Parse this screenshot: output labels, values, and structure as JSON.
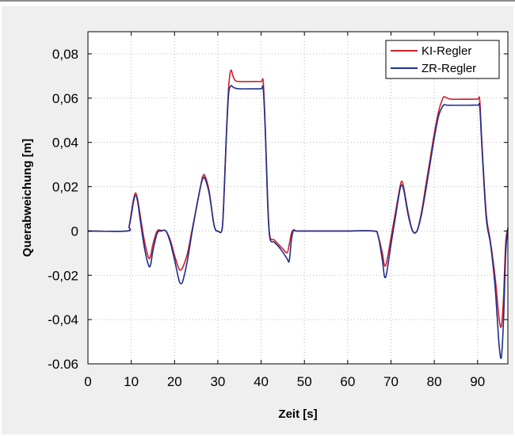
{
  "chart_data": {
    "type": "line",
    "title": "",
    "xlabel": "Zeit [s]",
    "ylabel": "Querabweichung [m]",
    "xlim": [
      0,
      97
    ],
    "ylim": [
      -0.06,
      0.09
    ],
    "x_ticks": [
      0,
      10,
      20,
      30,
      40,
      50,
      60,
      70,
      80,
      90
    ],
    "x_tick_labels": [
      "0",
      "10",
      "20",
      "30",
      "40",
      "50",
      "60",
      "70",
      "80",
      "90"
    ],
    "y_ticks": [
      -0.06,
      -0.04,
      -0.02,
      0,
      0.02,
      0.04,
      0.06,
      0.08
    ],
    "y_tick_labels": [
      "-0.06",
      "-0,04",
      "-0,02",
      "0",
      "0,02",
      "0,04",
      "0,06",
      "0,08"
    ],
    "grid": true,
    "legend_position": "top-right",
    "series": [
      {
        "name": "KI-Regler",
        "color": "#d01f2b",
        "x": [
          0,
          9,
          9.5,
          10,
          10.5,
          11,
          11.5,
          12,
          13,
          14,
          14.5,
          15,
          16,
          17,
          18,
          19,
          20,
          21,
          21.5,
          22,
          23,
          24,
          25,
          26,
          26.5,
          27,
          28,
          29,
          29.5,
          30,
          31,
          31.5,
          32,
          32.5,
          33,
          33.5,
          34,
          35,
          38,
          40,
          40.5,
          41,
          41.5,
          42,
          43,
          44,
          45,
          46,
          46.5,
          47,
          47.5,
          48,
          49,
          55,
          60,
          66,
          67,
          68,
          68.5,
          69,
          70,
          71,
          72,
          72.5,
          73,
          74,
          75,
          76,
          77,
          78,
          79,
          80,
          81,
          82,
          82.5,
          83,
          84,
          86,
          88,
          90,
          90.5,
          91,
          92,
          93,
          94,
          94.5,
          95,
          95.5,
          96,
          96.5,
          97
        ],
        "y": [
          0,
          0,
          0.002,
          0.008,
          0.014,
          0.0172,
          0.014,
          0.008,
          -0.004,
          -0.012,
          -0.011,
          -0.006,
          0,
          0.0002,
          0,
          -0.004,
          -0.011,
          -0.017,
          -0.0175,
          -0.016,
          -0.01,
          0,
          0.01,
          0.02,
          0.0245,
          0.025,
          0.018,
          0.004,
          0.0005,
          0,
          0.001,
          0.02,
          0.045,
          0.065,
          0.0725,
          0.07,
          0.068,
          0.0675,
          0.0675,
          0.0675,
          0.067,
          0.045,
          0.015,
          -0.002,
          -0.004,
          -0.006,
          -0.008,
          -0.0098,
          -0.006,
          -0.001,
          0.0005,
          0,
          0,
          0,
          0,
          0,
          -0.002,
          -0.01,
          -0.0155,
          -0.014,
          -0.003,
          0.008,
          0.019,
          0.0225,
          0.019,
          0.008,
          0,
          0,
          0.008,
          0.02,
          0.032,
          0.044,
          0.054,
          0.06,
          0.0605,
          0.06,
          0.0595,
          0.0595,
          0.0595,
          0.0595,
          0.059,
          0.04,
          0.008,
          -0.005,
          -0.02,
          -0.03,
          -0.04,
          -0.043,
          -0.03,
          -0.005,
          0.001
        ]
      },
      {
        "name": "ZR-Regler",
        "color": "#1f2e8a",
        "x": [
          0,
          9,
          9.5,
          10,
          10.5,
          11,
          11.5,
          12,
          13,
          14,
          14.5,
          15,
          16,
          17,
          18,
          19,
          20,
          21,
          21.5,
          22,
          23,
          24,
          25,
          26,
          26.5,
          27,
          28,
          29,
          29.5,
          30,
          31,
          31.5,
          32,
          32.5,
          33,
          33.5,
          34,
          35,
          38,
          40,
          40.5,
          41,
          41.5,
          42,
          43,
          44,
          45,
          46,
          46.5,
          47,
          47.5,
          48,
          49,
          55,
          60,
          66,
          67,
          68,
          68.5,
          69,
          70,
          71,
          72,
          72.5,
          73,
          74,
          75,
          76,
          77,
          78,
          79,
          80,
          81,
          82,
          82.5,
          83,
          84,
          86,
          88,
          90,
          90.5,
          91,
          92,
          93,
          94,
          94.5,
          95,
          95.5,
          96,
          96.5,
          97
        ],
        "y": [
          0,
          0,
          0.002,
          0.007,
          0.013,
          0.0162,
          0.013,
          0.006,
          -0.007,
          -0.0155,
          -0.015,
          -0.009,
          -0.001,
          0,
          0,
          -0.005,
          -0.013,
          -0.022,
          -0.0238,
          -0.022,
          -0.013,
          -0.001,
          0.01,
          0.02,
          0.0235,
          0.0238,
          0.017,
          0.004,
          0.0005,
          0,
          0.001,
          0.019,
          0.044,
          0.062,
          0.0655,
          0.065,
          0.0645,
          0.0642,
          0.0642,
          0.0642,
          0.064,
          0.043,
          0.013,
          -0.003,
          -0.005,
          -0.007,
          -0.0095,
          -0.0125,
          -0.0135,
          -0.004,
          0.0003,
          0,
          0,
          0,
          0,
          0,
          -0.002,
          -0.013,
          -0.0205,
          -0.019,
          -0.006,
          0.006,
          0.018,
          0.0208,
          0.018,
          0.007,
          0,
          0,
          0.007,
          0.018,
          0.03,
          0.042,
          0.052,
          0.0565,
          0.057,
          0.0568,
          0.0568,
          0.0568,
          0.0568,
          0.0568,
          0.056,
          0.038,
          0.006,
          -0.006,
          -0.024,
          -0.038,
          -0.052,
          -0.057,
          -0.04,
          -0.01,
          0.0015
        ]
      }
    ]
  }
}
